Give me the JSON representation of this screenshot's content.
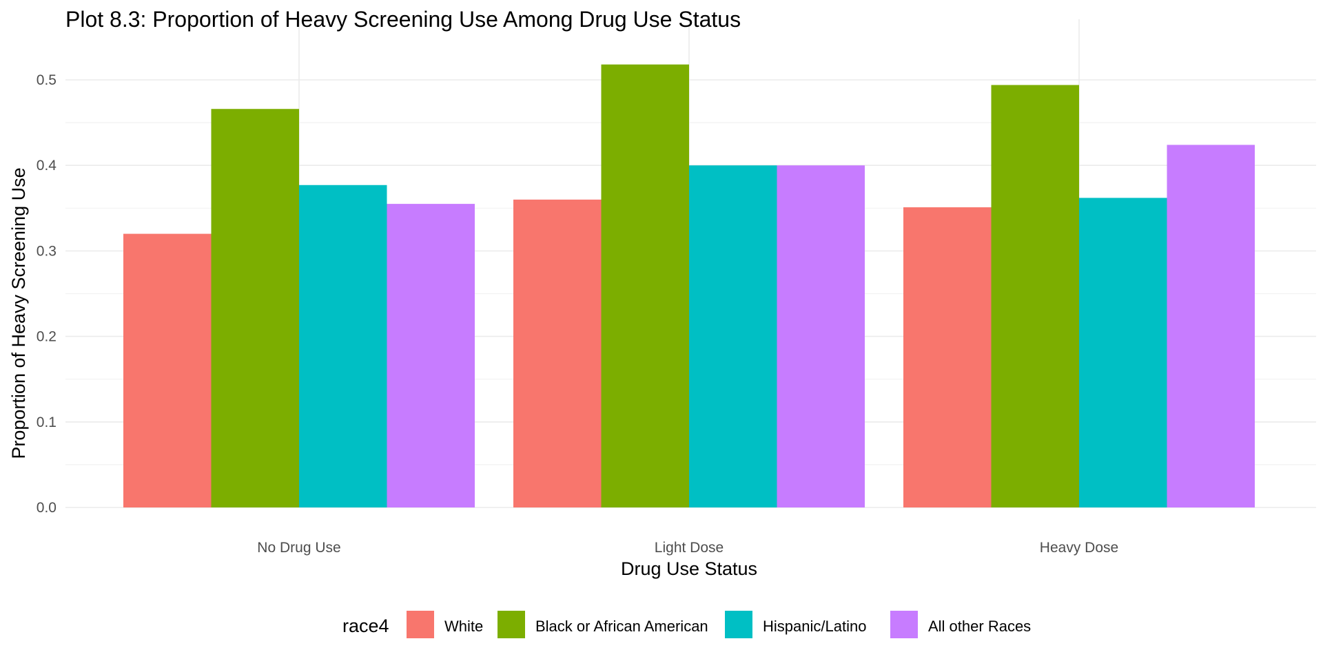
{
  "chart_data": {
    "type": "bar",
    "title": "Plot 8.3: Proportion of Heavy Screening Use Among Drug Use Status",
    "xlabel": "Drug Use Status",
    "ylabel": "Proportion of Heavy Screening Use",
    "categories": [
      "No Drug Use",
      "Light Dose",
      "Heavy Dose"
    ],
    "ylim": [
      0,
      0.52
    ],
    "yticks": [
      0.0,
      0.1,
      0.2,
      0.3,
      0.4,
      0.5
    ],
    "ytick_labels": [
      "0.0",
      "0.1",
      "0.2",
      "0.3",
      "0.4",
      "0.5"
    ],
    "grid": true,
    "legend": {
      "title": "race4",
      "placement": "bottom"
    },
    "series": [
      {
        "name": "White",
        "color": "#F8766D",
        "values": [
          0.32,
          0.36,
          0.351
        ]
      },
      {
        "name": "Black or African American",
        "color": "#7CAE00",
        "values": [
          0.466,
          0.518,
          0.494
        ]
      },
      {
        "name": "Hispanic/Latino",
        "color": "#00BFC4",
        "values": [
          0.377,
          0.4,
          0.362
        ]
      },
      {
        "name": "All other Races",
        "color": "#C77CFF",
        "values": [
          0.355,
          0.4,
          0.424
        ]
      }
    ]
  }
}
